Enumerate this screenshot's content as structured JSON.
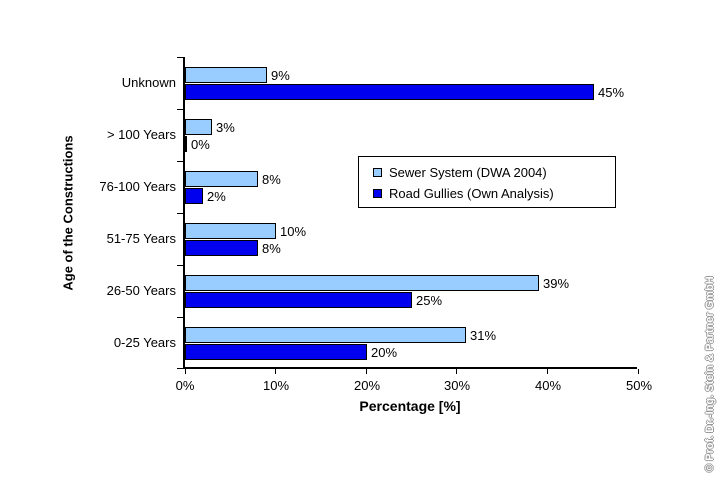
{
  "chart_data": {
    "type": "bar",
    "orientation": "horizontal",
    "title": "",
    "xlabel": "Percentage [%]",
    "ylabel": "Age of the Constructions",
    "categories": [
      "Unknown",
      "> 100 Years",
      "76-100 Years",
      "51-75 Years",
      "26-50 Years",
      "0-25 Years"
    ],
    "series": [
      {
        "name": "Sewer System (DWA 2004)",
        "color": "#99CCFF",
        "border_color": "#000000",
        "values": [
          9,
          3,
          8,
          10,
          39,
          31
        ],
        "labels": [
          "9%",
          "3%",
          "8%",
          "10%",
          "39%",
          "31%"
        ]
      },
      {
        "name": "Road Gullies (Own Analysis)",
        "color": "#0000EE",
        "border_color": "#000000",
        "values": [
          45,
          0,
          2,
          8,
          25,
          20
        ],
        "labels": [
          "45%",
          "0%",
          "2%",
          "8%",
          "25%",
          "20%"
        ]
      }
    ],
    "xlim": [
      0,
      50
    ],
    "xtick_values": [
      0,
      10,
      20,
      30,
      40,
      50
    ],
    "xtick_labels": [
      "0%",
      "10%",
      "20%",
      "30%",
      "40%",
      "50%"
    ],
    "grid": false,
    "legend_position": "inside-right",
    "axis_color": "#000000",
    "background_color": "#ffffff"
  },
  "watermark": {
    "text": "© Prof. Dr.-Ing. Stein & Partner GmbH",
    "color": "#9a9a9a"
  }
}
